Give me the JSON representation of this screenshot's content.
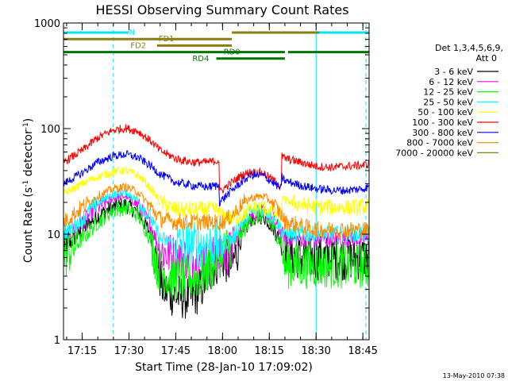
{
  "chart_data": {
    "type": "line",
    "title": "HESSI Observing Summary Count Rates",
    "xlabel": "Start Time (28-Jan-10 17:09:02)",
    "ylabel": {
      "pre": "Count Rate (s",
      "sup1": "-1",
      "mid": " detector",
      "sup2": "-1",
      "post": ")"
    },
    "y_scale": "log",
    "xlim": [
      "17:09",
      "18:47"
    ],
    "ylim": [
      1,
      1000
    ],
    "x_ticks": [
      "17:15",
      "17:30",
      "17:45",
      "18:00",
      "18:15",
      "18:30",
      "18:45"
    ],
    "y_ticks": [
      "1",
      "10",
      "100",
      "1000"
    ],
    "legend": {
      "header": "Det 1,3,4,5,6,9,",
      "header2": "Att 0",
      "placement": "right"
    },
    "series": [
      {
        "name": "3 - 6 keV",
        "color": "#000000",
        "x": [
          "17:09",
          "17:15",
          "17:20",
          "17:25",
          "17:29",
          "17:33",
          "17:37",
          "17:39",
          "17:41",
          "17:45",
          "17:50",
          "17:53",
          "17:57",
          "18:00",
          "18:03",
          "18:06",
          "18:09",
          "18:13",
          "18:16",
          "18:19",
          "18:20",
          "18:25",
          "18:30",
          "18:35",
          "18:40",
          "18:45",
          "18:47"
        ],
        "y": [
          7,
          11,
          15,
          18,
          19,
          16,
          10,
          5,
          3,
          2.6,
          2.5,
          3,
          5,
          6,
          5,
          9,
          14,
          15,
          12,
          8,
          7,
          6,
          6,
          6,
          6,
          6,
          6
        ]
      },
      {
        "name": "6 - 12 keV",
        "color": "#ff00ff",
        "x": [
          "17:09",
          "17:15",
          "17:20",
          "17:25",
          "17:29",
          "17:33",
          "17:37",
          "17:40",
          "17:45",
          "17:50",
          "17:55",
          "18:00",
          "18:03",
          "18:06",
          "18:09",
          "18:13",
          "18:16",
          "18:19",
          "18:20",
          "18:25",
          "18:30",
          "18:35",
          "18:40",
          "18:45",
          "18:47"
        ],
        "y": [
          9,
          13,
          18,
          22,
          23,
          19,
          12,
          7,
          6,
          6,
          6,
          6,
          7,
          11,
          15,
          16,
          14,
          10,
          9,
          9,
          9,
          9,
          9,
          9,
          9
        ]
      },
      {
        "name": "12 - 25 keV",
        "color": "#00ff00",
        "x": [
          "17:09",
          "17:15",
          "17:20",
          "17:25",
          "17:29",
          "17:33",
          "17:37",
          "17:39",
          "17:42",
          "17:48",
          "17:53",
          "17:57",
          "18:00",
          "18:03",
          "18:06",
          "18:09",
          "18:13",
          "18:16",
          "18:19",
          "18:20",
          "18:25",
          "18:30",
          "18:35",
          "18:40",
          "18:45",
          "18:47"
        ],
        "y": [
          6,
          9,
          13,
          17,
          18,
          15,
          9,
          5,
          4,
          3.8,
          4,
          5,
          7,
          8,
          10,
          14,
          15,
          12,
          8,
          5,
          5,
          5,
          5,
          5,
          5,
          5
        ]
      },
      {
        "name": "25 - 50 keV",
        "color": "#00ffff",
        "x": [
          "17:09",
          "17:15",
          "17:20",
          "17:25",
          "17:29",
          "17:33",
          "17:37",
          "17:40",
          "17:45",
          "17:50",
          "17:55",
          "18:00",
          "18:03",
          "18:06",
          "18:09",
          "18:13",
          "18:16",
          "18:19",
          "18:20",
          "18:25",
          "18:30",
          "18:35",
          "18:40",
          "18:45",
          "18:47"
        ],
        "y": [
          10,
          14,
          20,
          24,
          25,
          21,
          14,
          9,
          8,
          8,
          8,
          8,
          9,
          13,
          16,
          17,
          15,
          11,
          10,
          10,
          10,
          10,
          10,
          10,
          10
        ]
      },
      {
        "name": "50 - 100 keV",
        "color": "#ffff00",
        "x": [
          "17:09",
          "17:15",
          "17:20",
          "17:25",
          "17:29",
          "17:33",
          "17:37",
          "17:40",
          "17:45",
          "17:50",
          "17:55",
          "17:59",
          "17:59",
          "18:03",
          "18:06",
          "18:09",
          "18:13",
          "18:16",
          "18:19",
          "18:19",
          "18:20",
          "18:25",
          "18:30",
          "18:35",
          "18:40",
          "18:45",
          "18:47"
        ],
        "y": [
          24,
          30,
          35,
          39,
          40,
          36,
          27,
          20,
          17,
          17,
          17,
          17,
          15,
          14,
          15,
          17,
          18,
          16,
          14,
          22,
          21,
          19,
          18,
          18,
          18,
          18,
          18
        ]
      },
      {
        "name": "100 - 300 keV",
        "color": "#ff0000",
        "x": [
          "17:09",
          "17:15",
          "17:20",
          "17:25",
          "17:29",
          "17:33",
          "17:37",
          "17:40",
          "17:45",
          "17:50",
          "17:55",
          "17:59",
          "17:59",
          "18:03",
          "18:06",
          "18:09",
          "18:13",
          "18:16",
          "18:19",
          "18:19",
          "18:20",
          "18:25",
          "18:30",
          "18:35",
          "18:40",
          "18:45",
          "18:47"
        ],
        "y": [
          48,
          62,
          82,
          97,
          101,
          94,
          76,
          62,
          52,
          48,
          48,
          50,
          25,
          31,
          36,
          39,
          38,
          33,
          28,
          55,
          52,
          48,
          44,
          43,
          44,
          45,
          46
        ]
      },
      {
        "name": "300 - 800 keV",
        "color": "#0000ff",
        "x": [
          "17:09",
          "17:15",
          "17:20",
          "17:25",
          "17:29",
          "17:33",
          "17:37",
          "17:40",
          "17:45",
          "17:50",
          "17:55",
          "17:59",
          "17:59",
          "18:03",
          "18:06",
          "18:09",
          "18:13",
          "18:16",
          "18:19",
          "18:19",
          "18:20",
          "18:25",
          "18:30",
          "18:35",
          "18:40",
          "18:45",
          "18:47"
        ],
        "y": [
          30,
          38,
          48,
          55,
          57,
          53,
          44,
          37,
          31,
          29,
          28,
          29,
          20,
          26,
          31,
          36,
          36,
          31,
          27,
          35,
          32,
          29,
          27,
          26,
          26,
          27,
          28
        ]
      },
      {
        "name": "800 - 7000 keV",
        "color": "#ff8c00",
        "x": [
          "17:09",
          "17:15",
          "17:20",
          "17:25",
          "17:29",
          "17:33",
          "17:37",
          "17:40",
          "17:45",
          "17:50",
          "17:55",
          "18:00",
          "18:03",
          "18:06",
          "18:09",
          "18:13",
          "18:16",
          "18:19",
          "18:20",
          "18:25",
          "18:30",
          "18:35",
          "18:40",
          "18:45",
          "18:47"
        ],
        "y": [
          13,
          18,
          23,
          27,
          28,
          25,
          18,
          14,
          13,
          13,
          13,
          13,
          15,
          19,
          22,
          23,
          20,
          15,
          13,
          12,
          11,
          11,
          11,
          11,
          11
        ]
      },
      {
        "name": "7000 - 20000 keV",
        "color": "#8b7d14",
        "x": [],
        "y": []
      }
    ],
    "decimation_states": [
      {
        "label": "FD1",
        "color": "#8b7d14",
        "label_at": "17:42",
        "segments": [
          [
            "17:09",
            "18:03"
          ],
          [
            "18:03",
            "18:47"
          ]
        ],
        "levels": [
          1,
          0
        ]
      },
      {
        "label": "FD2",
        "color": "#8b7d14",
        "label_at": "17:33",
        "segments": [
          [
            "17:39",
            "18:03"
          ]
        ],
        "levels": [
          2
        ]
      },
      {
        "label": "RD0",
        "color": "#007400",
        "label_at": "18:03",
        "segments": [
          [
            "17:09",
            "18:20"
          ],
          [
            "18:21",
            "18:47"
          ]
        ],
        "levels": [
          3,
          3
        ]
      },
      {
        "label": "RD4",
        "color": "#007400",
        "label_at": "17:53",
        "segments": [
          [
            "17:58",
            "18:20"
          ]
        ],
        "levels": [
          4
        ]
      },
      {
        "label": "N",
        "color": "#00e5ff",
        "label_at": "17:31",
        "segments": [
          [
            "17:09",
            "17:30"
          ],
          [
            "18:31",
            "18:47"
          ]
        ],
        "levels": [
          0,
          0
        ]
      }
    ],
    "vertical_markers": [
      {
        "x": "17:09",
        "style": "solid",
        "color": "#00e5ff"
      },
      {
        "x": "17:25",
        "style": "dashed",
        "color": "#00e5ff"
      },
      {
        "x": "18:30",
        "style": "solid",
        "color": "#00e5ff"
      },
      {
        "x": "18:46",
        "style": "dashed",
        "color": "#00e5ff"
      }
    ],
    "footer_date": "13-May-2010 07:38"
  }
}
